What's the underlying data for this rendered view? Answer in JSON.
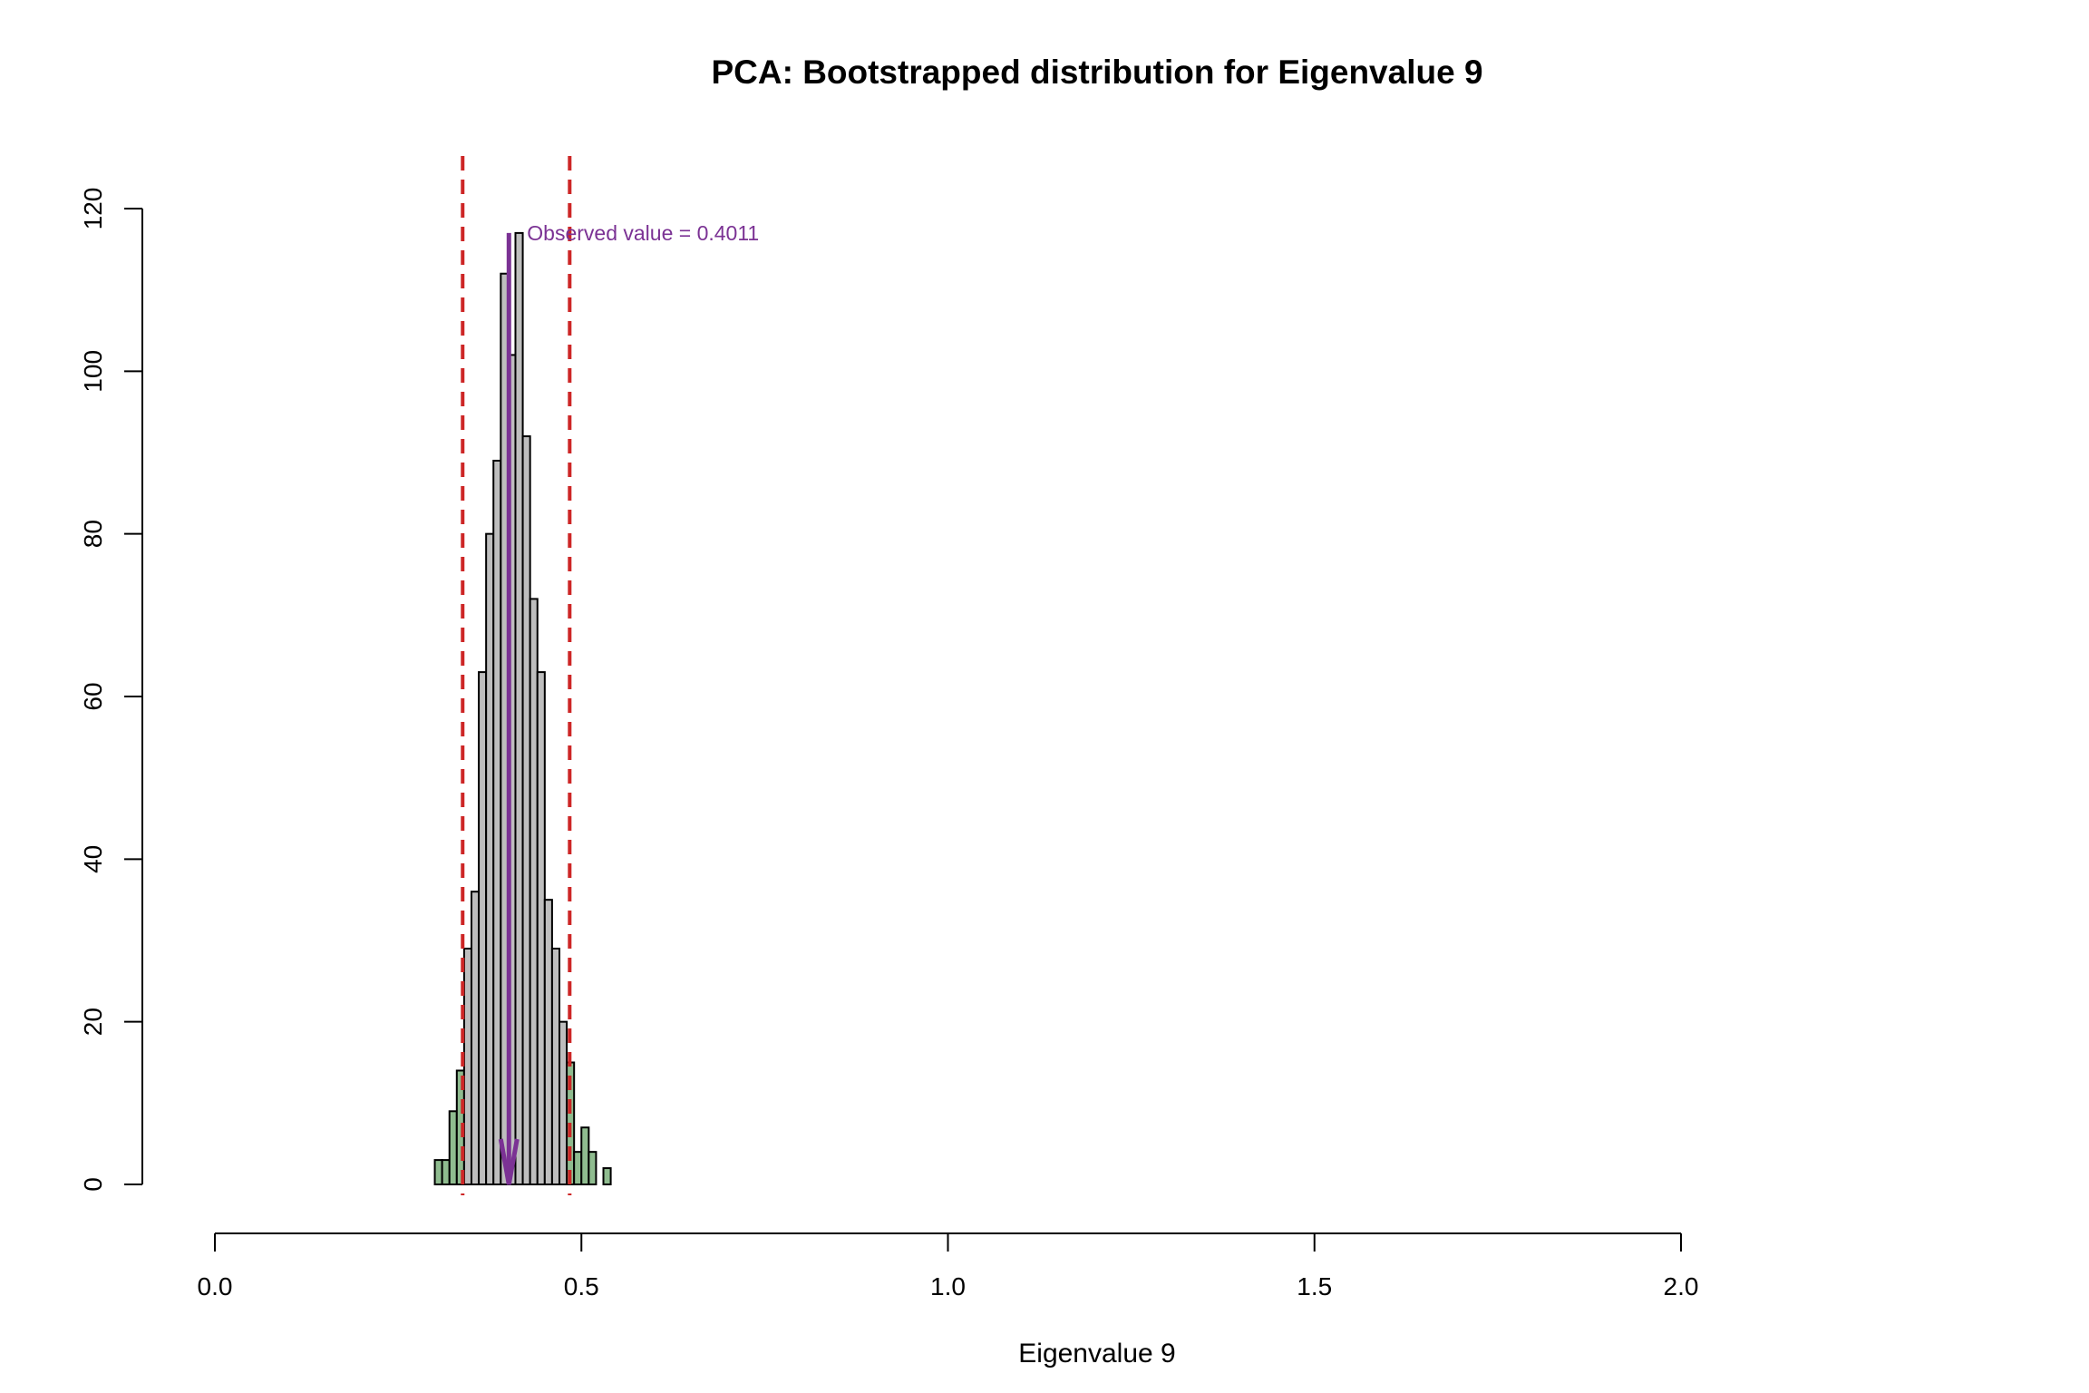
{
  "chart_data": {
    "type": "bar",
    "title": "PCA: Bootstrapped distribution for Eigenvalue 9",
    "xlabel": "Eigenvalue 9",
    "ylabel": "",
    "xlim": [
      0,
      2
    ],
    "ylim": [
      0,
      120
    ],
    "x_ticks": [
      "0.0",
      "0.5",
      "1.0",
      "1.5",
      "2.0"
    ],
    "y_ticks": [
      "0",
      "20",
      "40",
      "60",
      "80",
      "100",
      "120"
    ],
    "bin_width": 0.01,
    "bins": [
      {
        "x0": 0.3,
        "count": 3
      },
      {
        "x0": 0.31,
        "count": 3
      },
      {
        "x0": 0.32,
        "count": 9
      },
      {
        "x0": 0.33,
        "count": 14
      },
      {
        "x0": 0.34,
        "count": 29
      },
      {
        "x0": 0.35,
        "count": 36
      },
      {
        "x0": 0.36,
        "count": 63
      },
      {
        "x0": 0.37,
        "count": 80
      },
      {
        "x0": 0.38,
        "count": 89
      },
      {
        "x0": 0.39,
        "count": 112
      },
      {
        "x0": 0.4,
        "count": 102
      },
      {
        "x0": 0.41,
        "count": 117
      },
      {
        "x0": 0.42,
        "count": 92
      },
      {
        "x0": 0.43,
        "count": 72
      },
      {
        "x0": 0.44,
        "count": 63
      },
      {
        "x0": 0.45,
        "count": 35
      },
      {
        "x0": 0.46,
        "count": 29
      },
      {
        "x0": 0.47,
        "count": 20
      },
      {
        "x0": 0.48,
        "count": 15
      },
      {
        "x0": 0.49,
        "count": 4
      },
      {
        "x0": 0.5,
        "count": 7
      },
      {
        "x0": 0.51,
        "count": 4
      },
      {
        "x0": 0.52,
        "count": 0
      },
      {
        "x0": 0.53,
        "count": 2
      }
    ],
    "ci_lower": 0.338,
    "ci_upper": 0.484,
    "observed_value": 0.4011,
    "observed_label": "Observed value = 0.4011",
    "colors": {
      "bar_inside": "#bebebe",
      "bar_outside": "#8fbc8f",
      "ci_line": "#cd2626",
      "observed": "#7b3294"
    },
    "grid": false,
    "legend": "none"
  }
}
